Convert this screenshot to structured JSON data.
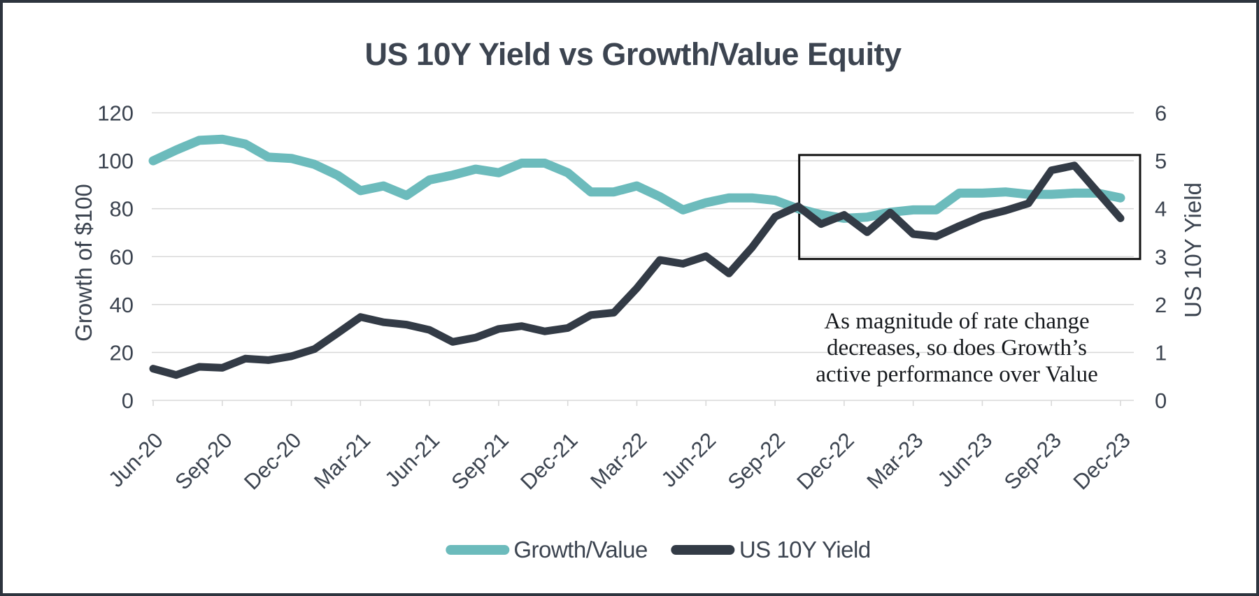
{
  "figure": {
    "title": "US 10Y Yield vs Growth/Value Equity",
    "left_axis_title": "Growth of $100",
    "right_axis_title": "US 10Y Yield",
    "annotation": {
      "lines": [
        "As magnitude of rate change",
        "decreases, so does Growth’s",
        "active performance over Value"
      ]
    },
    "legend": [
      {
        "label": "Growth/Value",
        "color": "#6cbbbc"
      },
      {
        "label": "US 10Y Yield",
        "color": "#333b46"
      }
    ],
    "colors": {
      "teal": "#6cbbbc",
      "dark_slate": "#333b46",
      "gridline": "#d9d9d9",
      "text": "#3c4450",
      "annotation_box_border": "#121212",
      "frame_border": "#2d343e"
    }
  },
  "chart_data": {
    "type": "line",
    "title": "US 10Y Yield vs Growth/Value Equity",
    "x": [
      "Jun-20",
      "Jul-20",
      "Aug-20",
      "Sep-20",
      "Oct-20",
      "Nov-20",
      "Dec-20",
      "Jan-21",
      "Feb-21",
      "Mar-21",
      "Apr-21",
      "May-21",
      "Jun-21",
      "Jul-21",
      "Aug-21",
      "Sep-21",
      "Oct-21",
      "Nov-21",
      "Dec-21",
      "Jan-22",
      "Feb-22",
      "Mar-22",
      "Apr-22",
      "May-22",
      "Jun-22",
      "Jul-22",
      "Aug-22",
      "Sep-22",
      "Oct-22",
      "Nov-22",
      "Dec-22",
      "Jan-23",
      "Feb-23",
      "Mar-23",
      "Apr-23",
      "May-23",
      "Jun-23",
      "Jul-23",
      "Aug-23",
      "Sep-23",
      "Oct-23",
      "Nov-23",
      "Dec-23"
    ],
    "x_tick_labels": [
      "Jun-20",
      "Sep-20",
      "Dec-20",
      "Mar-21",
      "Jun-21",
      "Sep-21",
      "Dec-21",
      "Mar-22",
      "Jun-22",
      "Sep-22",
      "Dec-22",
      "Mar-23",
      "Jun-23",
      "Sep-23",
      "Dec-23"
    ],
    "series": [
      {
        "name": "Growth/Value",
        "axis": "left",
        "color": "#6cbbbc",
        "values": [
          100,
          104.5,
          108.5,
          109,
          107,
          101.5,
          101,
          98.5,
          94,
          87.5,
          89.5,
          85.5,
          92,
          94,
          96.5,
          95,
          99,
          99,
          95,
          87,
          87,
          89.5,
          85,
          79.5,
          82.5,
          84.5,
          84.5,
          83.5,
          80,
          77.5,
          76,
          76.5,
          78.5,
          79.5,
          79.5,
          86.5,
          86.5,
          87,
          86,
          86,
          86.5,
          86.5,
          84.5
        ]
      },
      {
        "name": "US 10Y Yield",
        "axis": "right",
        "color": "#333b46",
        "values": [
          0.66,
          0.53,
          0.7,
          0.68,
          0.87,
          0.84,
          0.92,
          1.07,
          1.4,
          1.74,
          1.63,
          1.58,
          1.47,
          1.22,
          1.31,
          1.49,
          1.55,
          1.44,
          1.51,
          1.78,
          1.83,
          2.34,
          2.93,
          2.85,
          3.01,
          2.65,
          3.19,
          3.83,
          4.05,
          3.68,
          3.87,
          3.51,
          3.92,
          3.47,
          3.42,
          3.64,
          3.84,
          3.96,
          4.11,
          4.8,
          4.9,
          4.35,
          3.8
        ]
      }
    ],
    "left_axis": {
      "label": "Growth of $100",
      "range": [
        0,
        120
      ],
      "ticks": [
        0,
        20,
        40,
        60,
        80,
        100,
        120
      ]
    },
    "right_axis": {
      "label": "US 10Y Yield",
      "range": [
        0,
        6
      ],
      "ticks": [
        0,
        1,
        2,
        3,
        4,
        5,
        6
      ]
    },
    "grid": true,
    "legend_position": "bottom",
    "annotation": {
      "text": "As magnitude of rate change decreases, so does Growth’s active performance over Value",
      "box": {
        "x_from_index": 28.05,
        "x_to_index": 42.85,
        "right_axis_from": 2.95,
        "right_axis_to": 5.12
      }
    }
  }
}
